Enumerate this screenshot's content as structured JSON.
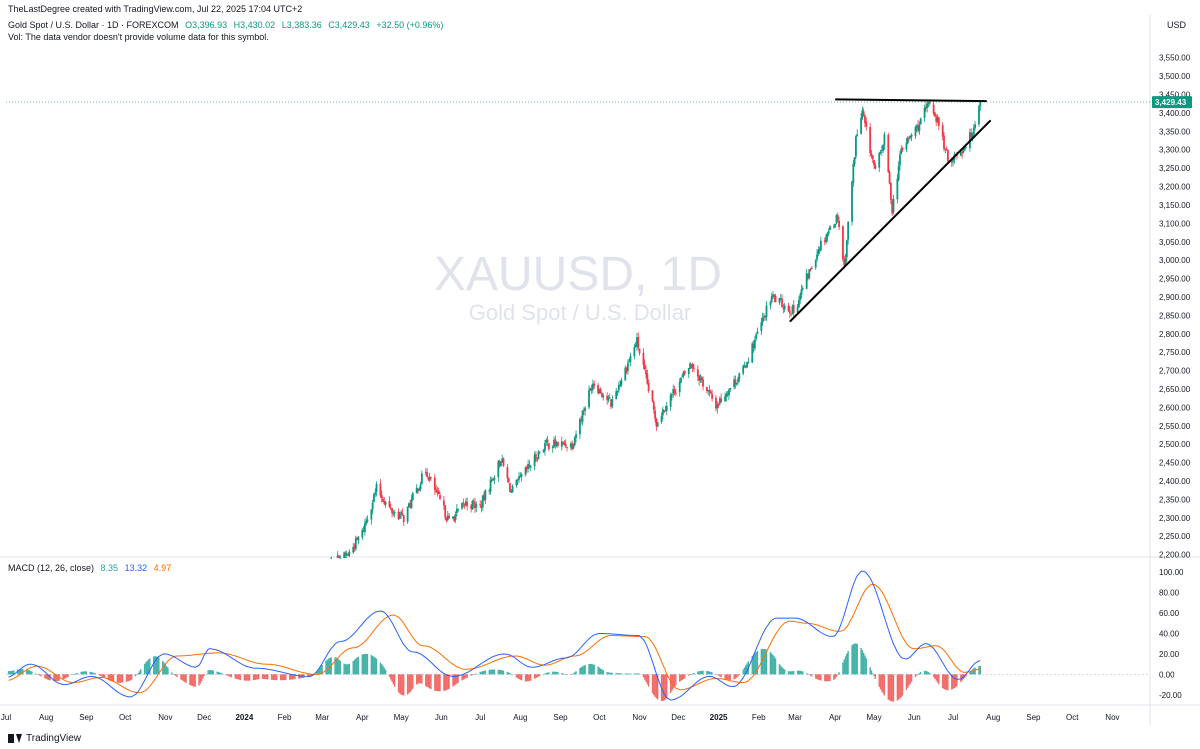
{
  "header": {
    "credit": "TheLastDegree created with TradingView.com, Jul 22, 2025 17:04 UTC+2",
    "symbol": "Gold Spot / U.S. Dollar · 1D · FOREXCOM",
    "open": "O3,396.93",
    "high": "H3,430.02",
    "low": "L3,383.36",
    "close": "C3,429.43",
    "change": "+32.50 (+0.96%)",
    "volume_note": "Vol: The data vendor doesn't provide volume data for this symbol.",
    "currency": "USD"
  },
  "watermark": {
    "title": "XAUUSD, 1D",
    "subtitle": "Gold Spot / U.S. Dollar"
  },
  "colors": {
    "up": "#089981",
    "down": "#f23645",
    "macd": "#2962ff",
    "signal": "#ff6d00",
    "hist_up": "#26a69a",
    "hist_down": "#ef5350",
    "price_tag": "#089981"
  },
  "chart_data": [
    {
      "type": "candlestick",
      "title": "XAUUSD, 1D",
      "price_label": "3,429.43",
      "y_ticks": [
        "3,550.00",
        "3,500.00",
        "3,450.00",
        "3,400.00",
        "3,350.00",
        "3,300.00",
        "3,250.00",
        "3,200.00",
        "3,150.00",
        "3,100.00",
        "3,050.00",
        "3,000.00",
        "2,950.00",
        "2,900.00",
        "2,850.00",
        "2,800.00",
        "2,750.00",
        "2,700.00",
        "2,650.00",
        "2,600.00",
        "2,550.00",
        "2,500.00",
        "2,450.00",
        "2,400.00",
        "2,350.00",
        "2,300.00",
        "2,250.00",
        "2,200.00"
      ],
      "ylim": [
        2180,
        3590
      ],
      "last_price": 3429.43,
      "x_labels": [
        "Jul",
        "Aug",
        "Sep",
        "Oct",
        "Nov",
        "Dec",
        "2024",
        "Feb",
        "Mar",
        "Apr",
        "May",
        "Jun",
        "Jul",
        "Aug",
        "Sep",
        "Oct",
        "Nov",
        "Dec",
        "2025",
        "Feb",
        "Mar",
        "Apr",
        "May",
        "Jun",
        "Jul",
        "Aug",
        "Sep",
        "Oct",
        "Nov"
      ],
      "x_start": "2023-07-01",
      "x_end": "2025-11-30",
      "data_start": "2024-03-01",
      "data_end": "2025-07-22",
      "anchors": [
        [
          "2024-03-01",
          2080
        ],
        [
          "2024-03-08",
          2180
        ],
        [
          "2024-03-21",
          2200
        ],
        [
          "2024-04-01",
          2260
        ],
        [
          "2024-04-12",
          2380
        ],
        [
          "2024-04-23",
          2320
        ],
        [
          "2024-05-03",
          2300
        ],
        [
          "2024-05-20",
          2430
        ],
        [
          "2024-06-07",
          2290
        ],
        [
          "2024-06-20",
          2340
        ],
        [
          "2024-07-01",
          2330
        ],
        [
          "2024-07-17",
          2460
        ],
        [
          "2024-07-25",
          2370
        ],
        [
          "2024-08-20",
          2500
        ],
        [
          "2024-09-10",
          2500
        ],
        [
          "2024-09-26",
          2670
        ],
        [
          "2024-10-10",
          2610
        ],
        [
          "2024-10-30",
          2780
        ],
        [
          "2024-11-14",
          2560
        ],
        [
          "2024-11-25",
          2630
        ],
        [
          "2024-12-11",
          2720
        ],
        [
          "2024-12-30",
          2605
        ],
        [
          "2025-01-20",
          2700
        ],
        [
          "2025-02-11",
          2900
        ],
        [
          "2025-02-28",
          2860
        ],
        [
          "2025-03-20",
          3040
        ],
        [
          "2025-04-03",
          3120
        ],
        [
          "2025-04-08",
          2980
        ],
        [
          "2025-04-17",
          3330
        ],
        [
          "2025-04-22",
          3400
        ],
        [
          "2025-04-28",
          3300
        ],
        [
          "2025-05-02",
          3240
        ],
        [
          "2025-05-09",
          3330
        ],
        [
          "2025-05-15",
          3140
        ],
        [
          "2025-05-22",
          3300
        ],
        [
          "2025-06-05",
          3370
        ],
        [
          "2025-06-13",
          3430
        ],
        [
          "2025-06-20",
          3370
        ],
        [
          "2025-06-27",
          3270
        ],
        [
          "2025-07-08",
          3300
        ],
        [
          "2025-07-15",
          3340
        ],
        [
          "2025-07-22",
          3429
        ]
      ],
      "trendlines": [
        {
          "name": "resistance",
          "from": [
            "2025-04-01",
            3437
          ],
          "to": [
            "2025-07-27",
            3432
          ]
        },
        {
          "name": "support",
          "from": [
            "2025-02-25",
            2833
          ],
          "to": [
            "2025-07-30",
            3380
          ]
        }
      ]
    },
    {
      "type": "macd",
      "title": "MACD (12, 26, close)",
      "params_label": "MACD (12, 26, close)",
      "values": {
        "histogram": "8.35",
        "macd": "13.32",
        "signal": "4.97"
      },
      "y_ticks": [
        "100.00",
        "80.00",
        "60.00",
        "40.00",
        "20.00",
        "0.00",
        "-20.00"
      ],
      "ylim": [
        -27,
        104
      ],
      "macd_anchors": [
        [
          "2023-07-01",
          -3
        ],
        [
          "2023-07-20",
          10
        ],
        [
          "2023-08-15",
          -10
        ],
        [
          "2023-09-05",
          -2
        ],
        [
          "2023-10-05",
          -22
        ],
        [
          "2023-10-31",
          20
        ],
        [
          "2023-11-25",
          7
        ],
        [
          "2023-12-05",
          25
        ],
        [
          "2024-01-10",
          6
        ],
        [
          "2024-02-20",
          -2
        ],
        [
          "2024-03-15",
          32
        ],
        [
          "2024-04-15",
          62
        ],
        [
          "2024-05-10",
          22
        ],
        [
          "2024-06-10",
          -2
        ],
        [
          "2024-07-20",
          20
        ],
        [
          "2024-08-10",
          7
        ],
        [
          "2024-09-05",
          16
        ],
        [
          "2024-10-01",
          40
        ],
        [
          "2024-10-31",
          38
        ],
        [
          "2024-11-25",
          -25
        ],
        [
          "2024-12-25",
          -2
        ],
        [
          "2025-01-12",
          -12
        ],
        [
          "2025-02-15",
          55
        ],
        [
          "2025-03-01",
          55
        ],
        [
          "2025-03-30",
          37
        ],
        [
          "2025-04-22",
          101
        ],
        [
          "2025-05-25",
          15
        ],
        [
          "2025-06-10",
          30
        ],
        [
          "2025-07-05",
          -5
        ],
        [
          "2025-07-22",
          13.32
        ]
      ],
      "signal_anchors": [
        [
          "2023-07-01",
          -6
        ],
        [
          "2023-07-25",
          8
        ],
        [
          "2023-08-22",
          -8
        ],
        [
          "2023-09-12",
          -3
        ],
        [
          "2023-10-12",
          -18
        ],
        [
          "2023-11-10",
          18
        ],
        [
          "2023-12-12",
          21
        ],
        [
          "2024-01-18",
          10
        ],
        [
          "2024-02-26",
          0
        ],
        [
          "2024-03-25",
          26
        ],
        [
          "2024-04-25",
          58
        ],
        [
          "2024-05-18",
          28
        ],
        [
          "2024-06-20",
          5
        ],
        [
          "2024-07-28",
          18
        ],
        [
          "2024-08-20",
          9
        ],
        [
          "2024-09-12",
          18
        ],
        [
          "2024-10-10",
          38
        ],
        [
          "2024-11-05",
          37
        ],
        [
          "2024-12-02",
          -15
        ],
        [
          "2024-12-30",
          -4
        ],
        [
          "2025-01-20",
          -8
        ],
        [
          "2025-02-25",
          52
        ],
        [
          "2025-03-10",
          50
        ],
        [
          "2025-04-05",
          42
        ],
        [
          "2025-04-30",
          88
        ],
        [
          "2025-06-01",
          25
        ],
        [
          "2025-06-18",
          28
        ],
        [
          "2025-07-10",
          2
        ],
        [
          "2025-07-22",
          4.97
        ]
      ]
    }
  ]
}
